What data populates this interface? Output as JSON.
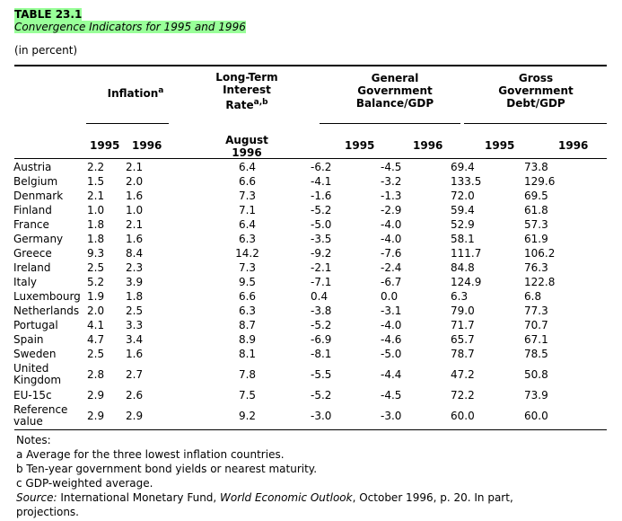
{
  "title": "TABLE 23.1",
  "subtitle": "Convergence Indicators for 1995 and 1996",
  "unit_note": "(in percent)",
  "headers": {
    "inflation": "Inflation",
    "inflation_sup": "a",
    "lt_rate_line1": "Long-Term",
    "lt_rate_line2": "Interest",
    "lt_rate_line3": "Rate",
    "lt_rate_sup": "a,b",
    "gov_bal_line1": "General",
    "gov_bal_line2": "Government",
    "gov_bal_line3": "Balance/GDP",
    "gross_line1": "Gross",
    "gross_line2": "Government",
    "gross_line3": "Debt/GDP",
    "infl_1995": "1995",
    "infl_1996": "1996",
    "lt_date_line1": "August",
    "lt_date_line2": "1996",
    "bal_1995": "1995",
    "bal_1996": "1996",
    "debt_1995": "1995",
    "debt_1996": "1996"
  },
  "rows": [
    {
      "country": [
        "Austria"
      ],
      "infl95": "2.2",
      "infl96": "2.1",
      "rate": "6.4",
      "bal95": "-6.2",
      "bal96": "-4.5",
      "debt95": "69.4",
      "debt96": "73.8"
    },
    {
      "country": [
        "Belgium"
      ],
      "infl95": "1.5",
      "infl96": "2.0",
      "rate": "6.6",
      "bal95": "-4.1",
      "bal96": "-3.2",
      "debt95": "133.5",
      "debt96": "129.6"
    },
    {
      "country": [
        "Denmark"
      ],
      "infl95": "2.1",
      "infl96": "1.6",
      "rate": "7.3",
      "bal95": "-1.6",
      "bal96": "-1.3",
      "debt95": "72.0",
      "debt96": "69.5"
    },
    {
      "country": [
        "Finland"
      ],
      "infl95": "1.0",
      "infl96": "1.0",
      "rate": "7.1",
      "bal95": "-5.2",
      "bal96": "-2.9",
      "debt95": "59.4",
      "debt96": "61.8"
    },
    {
      "country": [
        "France"
      ],
      "infl95": "1.8",
      "infl96": "2.1",
      "rate": "6.4",
      "bal95": "-5.0",
      "bal96": "-4.0",
      "debt95": "52.9",
      "debt96": "57.3"
    },
    {
      "country": [
        "Germany"
      ],
      "infl95": "1.8",
      "infl96": "1.6",
      "rate": "6.3",
      "bal95": "-3.5",
      "bal96": "-4.0",
      "debt95": "58.1",
      "debt96": "61.9"
    },
    {
      "country": [
        "Greece"
      ],
      "infl95": "9.3",
      "infl96": "8.4",
      "rate": "14.2",
      "bal95": "-9.2",
      "bal96": "-7.6",
      "debt95": "111.7",
      "debt96": "106.2"
    },
    {
      "country": [
        "Ireland"
      ],
      "infl95": "2.5",
      "infl96": "2.3",
      "rate": "7.3",
      "bal95": "-2.1",
      "bal96": "-2.4",
      "debt95": "84.8",
      "debt96": "76.3"
    },
    {
      "country": [
        "Italy"
      ],
      "infl95": "5.2",
      "infl96": "3.9",
      "rate": "9.5",
      "bal95": "-7.1",
      "bal96": "-6.7",
      "debt95": "124.9",
      "debt96": "122.8"
    },
    {
      "country": [
        "Luxembourg"
      ],
      "infl95": "1.9",
      "infl96": "1.8",
      "rate": "6.6",
      "bal95": "0.4",
      "bal96": "0.0",
      "debt95": "6.3",
      "debt96": "6.8"
    },
    {
      "country": [
        "Netherlands"
      ],
      "infl95": "2.0",
      "infl96": "2.5",
      "rate": "6.3",
      "bal95": "-3.8",
      "bal96": "-3.1",
      "debt95": "79.0",
      "debt96": "77.3"
    },
    {
      "country": [
        "Portugal"
      ],
      "infl95": "4.1",
      "infl96": "3.3",
      "rate": "8.7",
      "bal95": "-5.2",
      "bal96": "-4.0",
      "debt95": "71.7",
      "debt96": "70.7"
    },
    {
      "country": [
        "Spain"
      ],
      "infl95": "4.7",
      "infl96": "3.4",
      "rate": "8.9",
      "bal95": "-6.9",
      "bal96": "-4.6",
      "debt95": "65.7",
      "debt96": "67.1"
    },
    {
      "country": [
        "Sweden"
      ],
      "infl95": "2.5",
      "infl96": "1.6",
      "rate": "8.1",
      "bal95": "-8.1",
      "bal96": "-5.0",
      "debt95": "78.7",
      "debt96": "78.5"
    },
    {
      "country": [
        "United",
        "Kingdom"
      ],
      "infl95": "2.8",
      "infl96": "2.7",
      "rate": "7.8",
      "bal95": "-5.5",
      "bal96": "-4.4",
      "debt95": "47.2",
      "debt96": "50.8"
    },
    {
      "country": [
        "EU-15c"
      ],
      "infl95": "2.9",
      "infl96": "2.6",
      "rate": "7.5",
      "bal95": "-5.2",
      "bal96": "-4.5",
      "debt95": "72.2",
      "debt96": "73.9"
    },
    {
      "country": [
        "Reference",
        "value"
      ],
      "infl95": "2.9",
      "infl96": "2.9",
      "rate": "9.2",
      "bal95": "-3.0",
      "bal96": "-3.0",
      "debt95": "60.0",
      "debt96": "60.0"
    }
  ],
  "notes": {
    "heading": "Notes:",
    "a": "a Average for the three lowest inflation countries.",
    "b": "b Ten-year government bond yields or nearest maturity.",
    "c": "c GDP-weighted average.",
    "source_label": "Source:",
    "source_pre": " International Monetary Fund, ",
    "source_title": "World Economic Outlook",
    "source_post": ", October 1996, p. 20. In part,",
    "source_line2": "projections."
  }
}
